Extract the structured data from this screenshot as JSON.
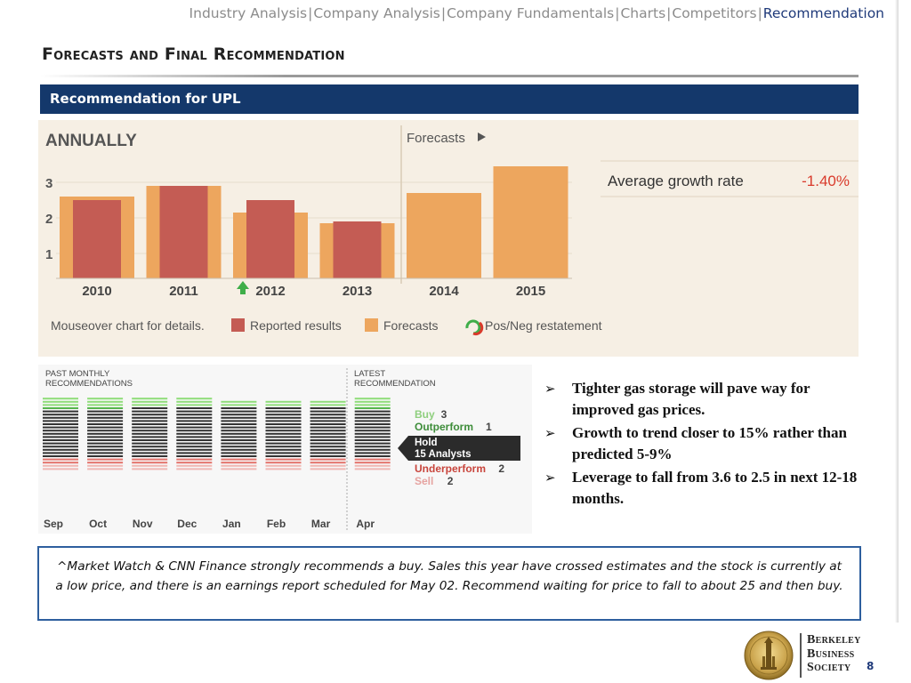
{
  "nav": {
    "items": [
      "Industry Analysis",
      "Company Analysis",
      "Company Fundamentals",
      "Charts",
      "Competitors",
      "Recommendation"
    ],
    "separator": "|",
    "active_index": 5,
    "active_color": "#1f3a7a"
  },
  "slide": {
    "title": "Forecasts and Final Recommendation",
    "section_label": "Recommendation for UPL",
    "page_number": "8"
  },
  "annual_chart": {
    "heading": "ANNUALLY",
    "forecasts_label": "Forecasts",
    "growth_label": "Average growth rate",
    "growth_value": "-1.40%",
    "footer_hint": "Mouseover chart for details.",
    "legend": {
      "reported": "Reported results",
      "forecasts": "Forecasts",
      "restatement": "Pos/Neg restatement"
    },
    "colors": {
      "reported": "#c45c54",
      "forecast": "#eda65e",
      "growth": "#d93a2b"
    }
  },
  "chart_data": [
    {
      "type": "bar",
      "title": "ANNUALLY",
      "categories": [
        "2010",
        "2011",
        "2012",
        "2013",
        "2014",
        "2015"
      ],
      "series": [
        {
          "name": "Forecasts",
          "values": [
            2.6,
            2.9,
            2.15,
            1.85,
            2.7,
            3.45
          ]
        },
        {
          "name": "Reported results",
          "values": [
            2.5,
            2.9,
            2.5,
            1.9,
            null,
            null
          ]
        }
      ],
      "yticks": [
        1,
        2,
        3
      ],
      "ylim": [
        0.3,
        3.45
      ],
      "grid": true,
      "legend_position": "bottom"
    },
    {
      "type": "bar",
      "title": "PAST MONTHLY RECOMMENDATIONS",
      "categories": [
        "Sep",
        "Oct",
        "Nov",
        "Dec",
        "Jan",
        "Feb",
        "Mar",
        "Apr"
      ],
      "series": [
        {
          "name": "Buy",
          "values": [
            3,
            3,
            3,
            3,
            2,
            2,
            2,
            3
          ]
        },
        {
          "name": "Outperform",
          "values": [
            1,
            1,
            0,
            0,
            0,
            0,
            0,
            1
          ]
        },
        {
          "name": "Hold",
          "values": [
            15,
            15,
            16,
            16,
            16,
            16,
            16,
            15
          ]
        },
        {
          "name": "Underperform",
          "values": [
            2,
            2,
            2,
            2,
            2,
            2,
            2,
            2
          ]
        },
        {
          "name": "Sell",
          "values": [
            2,
            2,
            2,
            2,
            2,
            2,
            2,
            2
          ]
        }
      ],
      "stacked": true,
      "legend_position": "right"
    }
  ],
  "monthly_panel": {
    "title_line1": "PAST MONTHLY",
    "title_line2": "RECOMMENDATIONS",
    "latest_line1": "LATEST",
    "latest_line2": "RECOMMENDATION",
    "latest": [
      {
        "label": "Buy",
        "count": "3",
        "color": "#8fcf7e"
      },
      {
        "label": "Outperform",
        "count": "1",
        "color": "#3e8d3a"
      },
      {
        "label": "Underperform",
        "count": "2",
        "color": "#c8453c"
      },
      {
        "label": "Sell",
        "count": "2",
        "color": "#e6a3a0"
      }
    ],
    "hold_label": "Hold",
    "hold_count": "15 Analysts",
    "colors": {
      "buy": "#8fdd7a",
      "outperform": "#55b44c",
      "hold": "#333333",
      "underperform": "#e3726b",
      "sell": "#f0b7b3"
    }
  },
  "bullets": [
    "Tighter gas storage will pave way for improved gas prices.",
    "Growth to trend closer to 15% rather than predicted 5-9%",
    "Leverage to fall from 3.6 to 2.5 in next 12-18 months."
  ],
  "note": "^Market Watch & CNN Finance strongly recommends a buy. Sales this year have crossed estimates and the stock is currently at a low price, and there is an earnings report scheduled for May 02. Recommend waiting for price to fall to about 25 and then buy.",
  "logo": {
    "line1": "Berkeley",
    "line2": "Business",
    "line3": "Society"
  }
}
